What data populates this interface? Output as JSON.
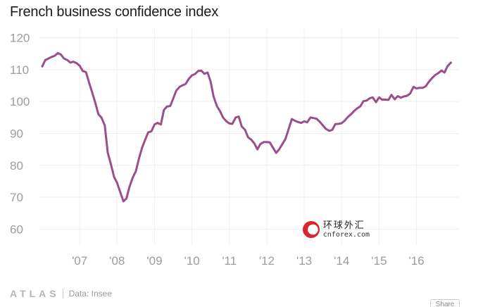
{
  "chart_data": {
    "type": "line",
    "title": "French business confidence index",
    "xlabel": "",
    "ylabel": "",
    "ylim": [
      55,
      123
    ],
    "xlim": [
      2006.0,
      2017.1
    ],
    "y_ticks": [
      60,
      70,
      80,
      90,
      100,
      110,
      120
    ],
    "x_ticks": [
      {
        "value": 2007,
        "label": "'07"
      },
      {
        "value": 2008,
        "label": "'08"
      },
      {
        "value": 2009,
        "label": "'09"
      },
      {
        "value": 2010,
        "label": "'10"
      },
      {
        "value": 2011,
        "label": "'11"
      },
      {
        "value": 2012,
        "label": "'12"
      },
      {
        "value": 2013,
        "label": "'13"
      },
      {
        "value": 2014,
        "label": "'14"
      },
      {
        "value": 2015,
        "label": "'15"
      },
      {
        "value": 2016,
        "label": "'16"
      }
    ],
    "grid": true,
    "color": "#9b4f8a",
    "series": [
      {
        "name": "French business confidence index",
        "x": [
          2006.0,
          2006.08,
          2006.17,
          2006.25,
          2006.33,
          2006.42,
          2006.5,
          2006.58,
          2006.67,
          2006.75,
          2006.83,
          2006.92,
          2007.0,
          2007.08,
          2007.17,
          2007.25,
          2007.33,
          2007.42,
          2007.5,
          2007.58,
          2007.67,
          2007.75,
          2007.83,
          2007.92,
          2008.0,
          2008.08,
          2008.17,
          2008.25,
          2008.33,
          2008.42,
          2008.5,
          2008.58,
          2008.67,
          2008.75,
          2008.83,
          2008.92,
          2009.0,
          2009.08,
          2009.17,
          2009.25,
          2009.33,
          2009.42,
          2009.5,
          2009.58,
          2009.67,
          2009.75,
          2009.83,
          2009.92,
          2010.0,
          2010.08,
          2010.17,
          2010.25,
          2010.33,
          2010.42,
          2010.5,
          2010.58,
          2010.67,
          2010.75,
          2010.83,
          2010.92,
          2011.0,
          2011.08,
          2011.17,
          2011.25,
          2011.33,
          2011.42,
          2011.5,
          2011.58,
          2011.67,
          2011.75,
          2011.83,
          2011.92,
          2012.0,
          2012.08,
          2012.17,
          2012.25,
          2012.33,
          2012.42,
          2012.5,
          2012.58,
          2012.67,
          2012.75,
          2012.83,
          2012.92,
          2013.0,
          2013.08,
          2013.17,
          2013.25,
          2013.33,
          2013.42,
          2013.5,
          2013.58,
          2013.67,
          2013.75,
          2013.83,
          2013.92,
          2014.0,
          2014.08,
          2014.17,
          2014.25,
          2014.33,
          2014.42,
          2014.5,
          2014.58,
          2014.67,
          2014.75,
          2014.83,
          2014.92,
          2015.0,
          2015.08,
          2015.17,
          2015.25,
          2015.33,
          2015.42,
          2015.5,
          2015.58,
          2015.67,
          2015.75,
          2015.83,
          2015.92,
          2016.0,
          2016.08,
          2016.17,
          2016.25,
          2016.33,
          2016.42,
          2016.5,
          2016.58,
          2016.67,
          2016.75,
          2016.83,
          2016.92
        ],
        "values": [
          111,
          113,
          113.5,
          114,
          114.3,
          115.2,
          114.7,
          113.5,
          113,
          112.2,
          112.5,
          112,
          111.2,
          109.6,
          109.2,
          106,
          103,
          99.5,
          96,
          95,
          92.5,
          84,
          80.5,
          76.3,
          74.5,
          71.7,
          68.7,
          69.6,
          73.2,
          76.2,
          78.1,
          81.9,
          85.6,
          88,
          90.3,
          90.7,
          92.8,
          93.3,
          92.8,
          97.3,
          98.4,
          98.6,
          100.9,
          103.4,
          104.6,
          105.1,
          105.5,
          107.2,
          108.2,
          108.6,
          109.6,
          109.7,
          108.7,
          109.1,
          106.2,
          101.5,
          98.5,
          97,
          95,
          93.8,
          93.1,
          93,
          95,
          95.3,
          92.2,
          91.1,
          88.8,
          88.1,
          86.8,
          85,
          86.7,
          87.3,
          87.3,
          87.2,
          85.4,
          83.9,
          85,
          86.7,
          88.3,
          91.2,
          94.5,
          94,
          93.6,
          93.3,
          93.8,
          93.5,
          95,
          94.8,
          94.6,
          93.6,
          92.5,
          91.4,
          90.8,
          91.1,
          92.9,
          93,
          93.2,
          94,
          95.2,
          96,
          97,
          97.9,
          98.5,
          100.1,
          100.3,
          101,
          101.3,
          99.8,
          101.3,
          100.6,
          100.6,
          100.5,
          102.1,
          100.7,
          101.7,
          101.2,
          101.6,
          101.8,
          102.5,
          104.6,
          104.1,
          104.3,
          104.3,
          104.8,
          106.2,
          107.4,
          108.3,
          108.9,
          109.7,
          109.1,
          111.1,
          112.2
        ]
      }
    ]
  },
  "footer": {
    "brand": "ATLAS",
    "source": "Data: Insee",
    "share_label": "Share"
  },
  "watermark": {
    "chinese_text": "环球外汇",
    "url_text": "cnforex.com"
  }
}
